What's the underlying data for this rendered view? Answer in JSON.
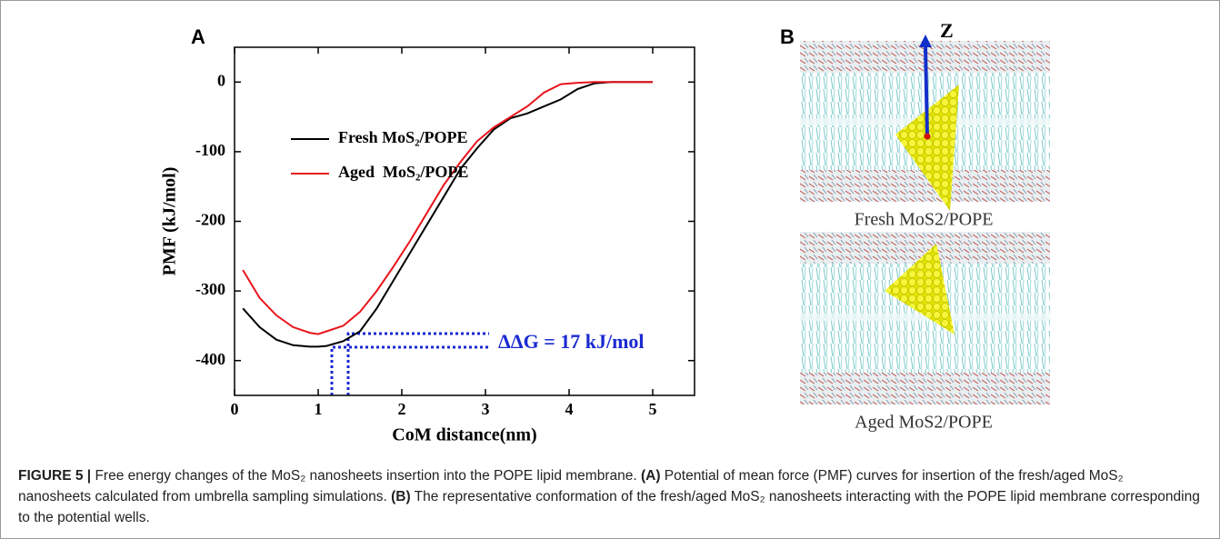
{
  "panel_a": {
    "label": "A"
  },
  "panel_b": {
    "label": "B",
    "axis_label": "Z",
    "images": [
      {
        "caption": "Fresh MoS2/POPE"
      },
      {
        "caption": "Aged MoS2/POPE"
      }
    ]
  },
  "chart_data": {
    "type": "line",
    "y_label": "PMF (kJ/mol)",
    "x_label": "CoM distance(nm)",
    "annotation": "ΔΔG = 17 kJ/mol",
    "x": [
      0.1,
      0.3,
      0.5,
      0.7,
      0.9,
      1.0,
      1.1,
      1.3,
      1.5,
      1.7,
      1.9,
      2.1,
      2.3,
      2.5,
      2.7,
      2.9,
      3.1,
      3.3,
      3.5,
      3.7,
      3.9,
      4.1,
      4.3,
      4.5,
      4.7,
      5.0
    ],
    "series": [
      {
        "name": "Fresh MoS₂/POPE",
        "color": "#000000",
        "values": [
          -325,
          -352,
          -370,
          -378,
          -380,
          -380,
          -379,
          -372,
          -358,
          -325,
          -285,
          -245,
          -205,
          -165,
          -125,
          -95,
          -68,
          -52,
          -45,
          -35,
          -25,
          -10,
          -2,
          0,
          0,
          0
        ]
      },
      {
        "name": "Aged  MoS₂/POPE",
        "color": "#e8141b",
        "values": [
          -270,
          -310,
          -335,
          -352,
          -360,
          -362,
          -358,
          -350,
          -330,
          -300,
          -265,
          -228,
          -188,
          -148,
          -115,
          -85,
          -65,
          -50,
          -35,
          -15,
          -3,
          -1,
          0,
          0,
          0,
          0
        ]
      }
    ],
    "xlim": [
      0,
      5.5
    ],
    "xticks": [
      0,
      1,
      2,
      3,
      4,
      5
    ],
    "ylim": [
      -450,
      50
    ],
    "yticks": [
      0,
      -100,
      -200,
      -300,
      -400
    ]
  },
  "caption": {
    "label": "FIGURE 5 |",
    "parts": [
      " Free energy changes of the MoS₂ nanosheets insertion into the POPE lipid membrane. ",
      "(A)",
      " Potential of mean force (PMF) curves for insertion of the fresh/aged MoS₂ nanosheets calculated from umbrella sampling simulations. ",
      "(B)",
      " The representative conformation of the fresh/aged MoS₂ nanosheets interacting with the POPE lipid membrane corresponding to the potential wells."
    ]
  }
}
